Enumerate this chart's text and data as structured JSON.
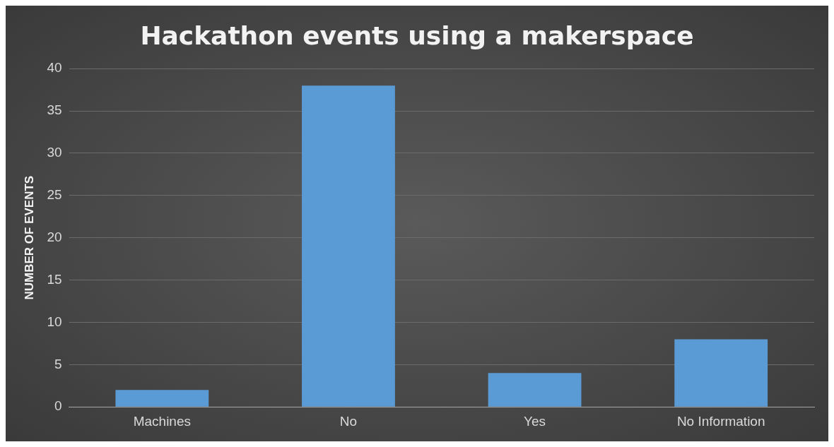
{
  "chart_data": {
    "type": "bar",
    "title": "Hackathon events using a makerspace",
    "ylabel": "NUMBER OF EVENTS",
    "categories": [
      "Machines",
      "No",
      "Yes",
      "No Information"
    ],
    "values": [
      2,
      38,
      4,
      8
    ],
    "color": "#5b9bd5",
    "ylim": [
      0,
      40
    ],
    "yticks": [
      0,
      5,
      10,
      15,
      20,
      25,
      30,
      35,
      40
    ],
    "grid": "y",
    "legend": false
  }
}
